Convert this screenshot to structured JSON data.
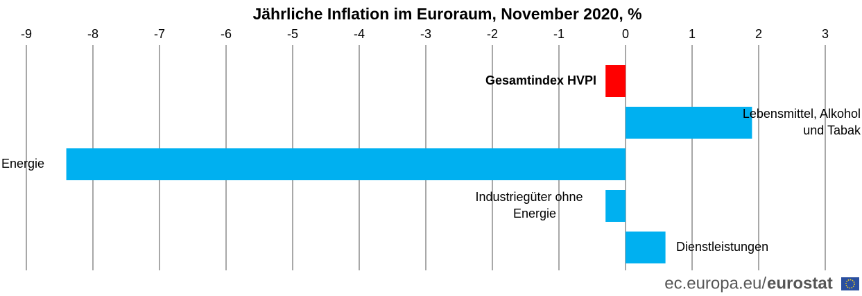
{
  "chart_data": {
    "type": "barh",
    "title": "Jährliche Inflation im Euroraum, November 2020, %",
    "categories": [
      [
        "Gesamtindex HVPI"
      ],
      [
        "Lebensmittel, Alkohol",
        "und Tabak"
      ],
      [
        "Energie"
      ],
      [
        "Industriegüter ohne",
        "Energie"
      ],
      [
        "Dienstleistungen"
      ]
    ],
    "values": [
      -0.3,
      1.9,
      -8.4,
      -0.3,
      0.6
    ],
    "colors": [
      "#ff0000",
      "#00b0f0",
      "#00b0f0",
      "#00b0f0",
      "#00b0f0"
    ],
    "xlim": [
      -9,
      3
    ],
    "xticks": [
      -9,
      -8,
      -7,
      -6,
      -5,
      -4,
      -3,
      -2,
      -1,
      0,
      1,
      2,
      3
    ],
    "grid": true
  },
  "footer": {
    "site": "ec.europa.eu/",
    "brand": "eurostat"
  }
}
